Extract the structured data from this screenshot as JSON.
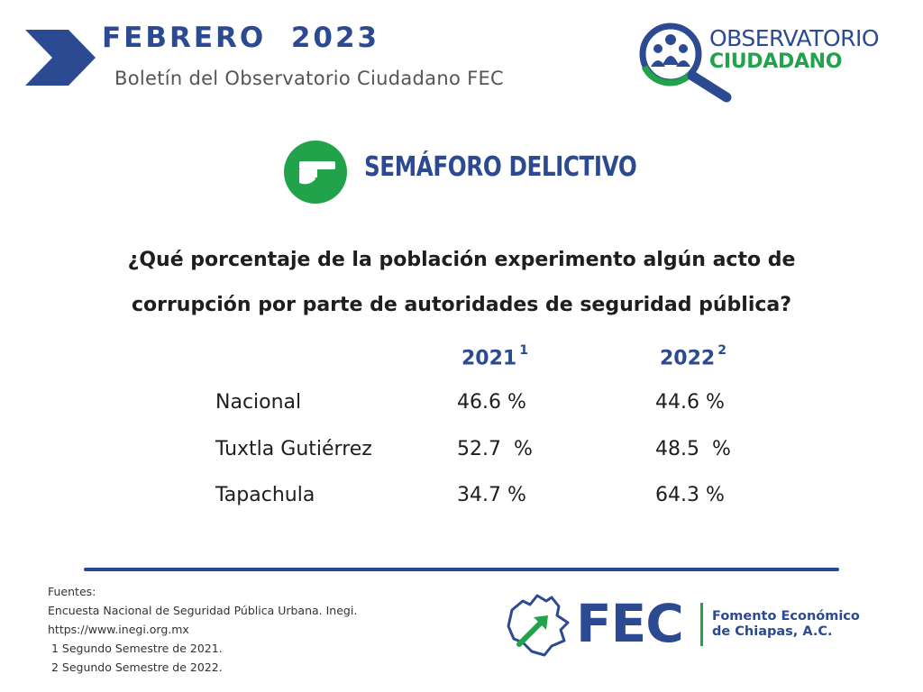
{
  "header": {
    "month_title": "FEBRERO  2023",
    "subtitle": "Boletín del Observatorio Ciudadano FEC",
    "chevron_icon": "chevron-right-icon",
    "accent_color": "#2c4a92"
  },
  "observatorio_logo": {
    "line1": "OBSERVATORIO",
    "line2": "CIUDADANO",
    "icon": "magnifier-people-icon",
    "green": "#22a24a"
  },
  "section": {
    "title": "SEMÁFORO DELICTIVO",
    "icon": "hand-gun-icon"
  },
  "question": {
    "line1": "¿Qué porcentaje de la población experimento algún acto de",
    "line2": "corrupción por parte de autoridades de seguridad pública?"
  },
  "table": {
    "years": [
      {
        "label": "2021",
        "note": "1"
      },
      {
        "label": "2022",
        "note": "2"
      }
    ],
    "rows": [
      {
        "name": "Nacional",
        "v2021": "46.6 %",
        "v2022": "44.6 %"
      },
      {
        "name": "Tuxtla Gutiérrez",
        "v2021": "52.7  %",
        "v2022": "48.5  %"
      },
      {
        "name": "Tapachula",
        "v2021": "34.7 %",
        "v2022": "64.3 %"
      }
    ]
  },
  "sources": {
    "heading": "Fuentes:",
    "lines": [
      "Encuesta Nacional de Seguridad Pública Urbana. Inegi.",
      "https://www.inegi.org.mx",
      " 1 Segundo Semestre de 2021.",
      " 2 Segundo Semestre de 2022."
    ]
  },
  "fec_logo": {
    "acronym": "FEC",
    "name_line1": "Fomento Económico",
    "name_line2": "de Chiapas, A.C.",
    "icon": "chiapas-map-arrow-icon"
  }
}
